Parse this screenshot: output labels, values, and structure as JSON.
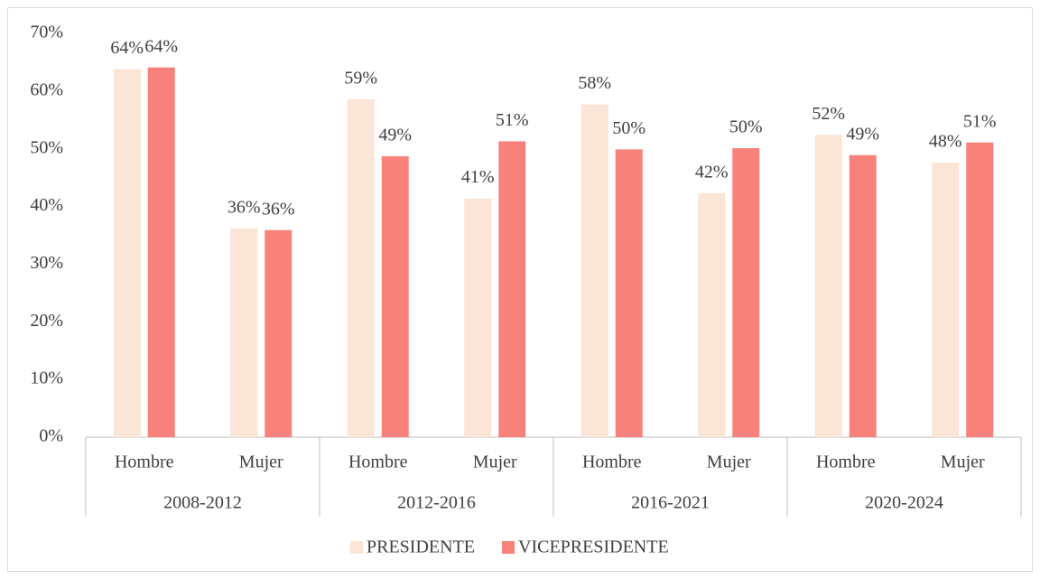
{
  "chart_data": {
    "type": "bar",
    "groups": [
      "2008-2012",
      "2012-2016",
      "2016-2021",
      "2020-2024"
    ],
    "categories": [
      "Hombre",
      "Mujer",
      "Hombre",
      "Mujer",
      "Hombre",
      "Mujer",
      "Hombre",
      "Mujer"
    ],
    "series": [
      {
        "name": "PRESIDENTE",
        "color": "#fbe5d6",
        "values": [
          63.8,
          36.2,
          58.6,
          41.4,
          57.7,
          42.3,
          52.4,
          47.6
        ],
        "value_labels": [
          "64%",
          "36%",
          "59%",
          "41%",
          "58%",
          "42%",
          "52%",
          "48%"
        ]
      },
      {
        "name": "VICEPRESIDENTE",
        "color": "#f8827b",
        "values": [
          64.1,
          35.9,
          48.7,
          51.3,
          49.9,
          50.1,
          48.9,
          51.1
        ],
        "value_labels": [
          "64%",
          "36%",
          "49%",
          "51%",
          "50%",
          "50%",
          "49%",
          "51%"
        ]
      }
    ],
    "ylim": [
      0,
      70
    ],
    "yticks": [
      {
        "value": 0,
        "label": "0%"
      },
      {
        "value": 10,
        "label": "10%"
      },
      {
        "value": 20,
        "label": "20%"
      },
      {
        "value": 30,
        "label": "30%"
      },
      {
        "value": 40,
        "label": "40%"
      },
      {
        "value": 50,
        "label": "50%"
      },
      {
        "value": 60,
        "label": "60%"
      },
      {
        "value": 70,
        "label": "70%"
      }
    ],
    "grid": false,
    "legend": "bottom"
  }
}
